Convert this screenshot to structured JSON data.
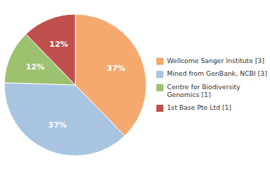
{
  "chart_data": {
    "type": "pie",
    "categories": [
      "Wellcome Sanger Institute [3]",
      "Mined from GenBank, NCBI [3]",
      "Centre for Biodiversity\nGenomics [1]",
      "1st Base Pte Ltd [1]"
    ],
    "values": [
      37,
      37,
      12,
      12
    ],
    "value_labels": [
      "37%",
      "37%",
      "12%",
      "12%"
    ],
    "colors": [
      "#f5a96e",
      "#a8c4e0",
      "#9dc16e",
      "#c0504d"
    ],
    "data_labels": true,
    "legend": "right"
  }
}
